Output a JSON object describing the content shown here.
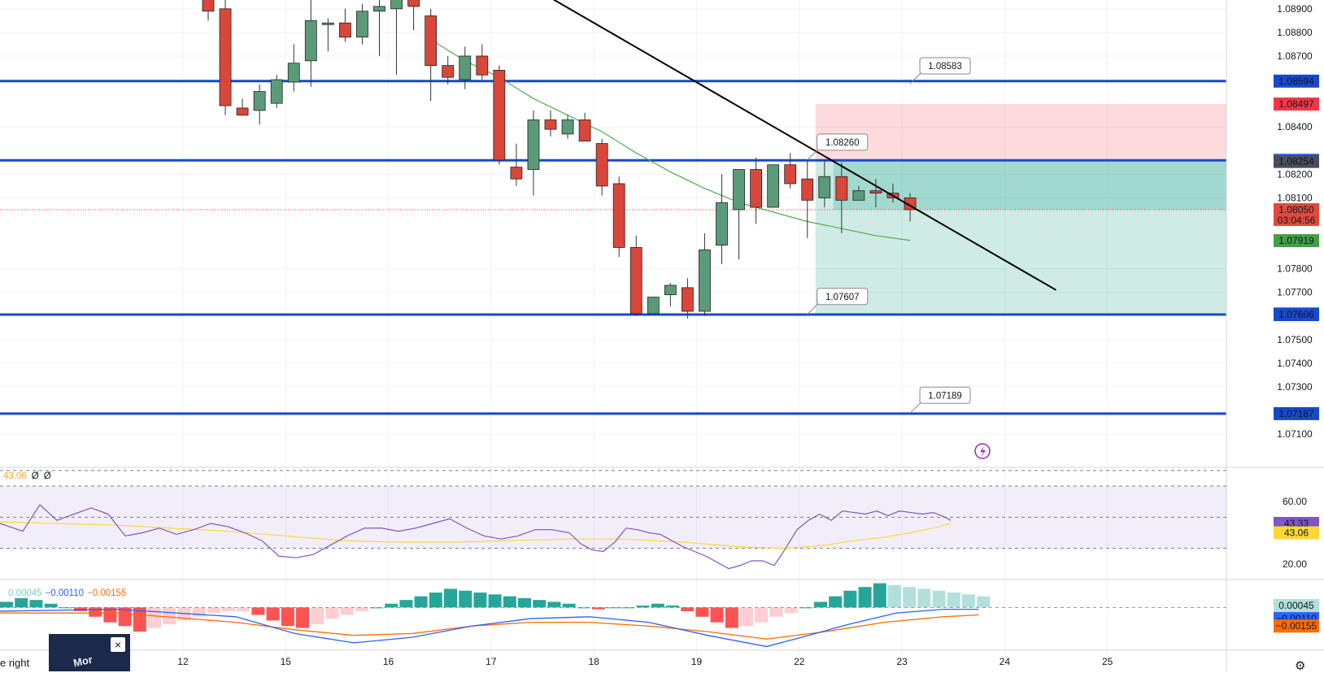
{
  "chart_data": {
    "type": "candlestick",
    "price_range": [
      1.0705,
      1.0895
    ],
    "price_ticks": [
      "1.08900",
      "1.08800",
      "1.08700",
      "1.08400",
      "1.08200",
      "1.08100",
      "1.07800",
      "1.07700",
      "1.07500",
      "1.07400",
      "1.07300",
      "1.07100"
    ],
    "x_ticks": [
      {
        "label": "12",
        "x": 8
      },
      {
        "label": "15",
        "x": 14
      },
      {
        "label": "16",
        "x": 20
      },
      {
        "label": "17",
        "x": 26
      },
      {
        "label": "18",
        "x": 32
      },
      {
        "label": "19",
        "x": 38
      },
      {
        "label": "22",
        "x": 44
      },
      {
        "label": "23",
        "x": 50
      },
      {
        "label": "24",
        "x": 56
      },
      {
        "label": "25",
        "x": 62
      }
    ],
    "candles": [
      {
        "x": 9,
        "o": 1.0895,
        "h": 1.09,
        "l": 1.0885,
        "c": 1.0889
      },
      {
        "x": 10,
        "o": 1.089,
        "h": 1.0895,
        "l": 1.0845,
        "c": 1.0849
      },
      {
        "x": 11,
        "o": 1.0848,
        "h": 1.0852,
        "l": 1.0845,
        "c": 1.0845
      },
      {
        "x": 12,
        "o": 1.0847,
        "h": 1.0858,
        "l": 1.0841,
        "c": 1.0855
      },
      {
        "x": 13,
        "o": 1.085,
        "h": 1.0862,
        "l": 1.0848,
        "c": 1.086
      },
      {
        "x": 14,
        "o": 1.0859,
        "h": 1.0875,
        "l": 1.0855,
        "c": 1.0867
      },
      {
        "x": 15,
        "o": 1.0868,
        "h": 1.0895,
        "l": 1.0857,
        "c": 1.0885
      },
      {
        "x": 16,
        "o": 1.0884,
        "h": 1.0886,
        "l": 1.0872,
        "c": 1.0884
      },
      {
        "x": 17,
        "o": 1.0884,
        "h": 1.089,
        "l": 1.0876,
        "c": 1.0878
      },
      {
        "x": 18,
        "o": 1.0878,
        "h": 1.0892,
        "l": 1.0875,
        "c": 1.0889
      },
      {
        "x": 19,
        "o": 1.0889,
        "h": 1.0895,
        "l": 1.087,
        "c": 1.0891
      },
      {
        "x": 20,
        "o": 1.089,
        "h": 1.09,
        "l": 1.0862,
        "c": 1.09
      },
      {
        "x": 21,
        "o": 1.0901,
        "h": 1.0905,
        "l": 1.0881,
        "c": 1.0891
      },
      {
        "x": 22,
        "o": 1.0887,
        "h": 1.089,
        "l": 1.0851,
        "c": 1.0866
      },
      {
        "x": 23,
        "o": 1.0866,
        "h": 1.087,
        "l": 1.0858,
        "c": 1.0861
      },
      {
        "x": 24,
        "o": 1.086,
        "h": 1.0874,
        "l": 1.0856,
        "c": 1.087
      },
      {
        "x": 25,
        "o": 1.087,
        "h": 1.0875,
        "l": 1.086,
        "c": 1.0862
      },
      {
        "x": 26,
        "o": 1.0864,
        "h": 1.0866,
        "l": 1.0824,
        "c": 1.0826
      },
      {
        "x": 27,
        "o": 1.0823,
        "h": 1.0833,
        "l": 1.0815,
        "c": 1.0818
      },
      {
        "x": 28,
        "o": 1.0822,
        "h": 1.0847,
        "l": 1.0811,
        "c": 1.0843
      },
      {
        "x": 29,
        "o": 1.0843,
        "h": 1.0847,
        "l": 1.0836,
        "c": 1.0839
      },
      {
        "x": 30,
        "o": 1.0837,
        "h": 1.0845,
        "l": 1.0835,
        "c": 1.0843
      },
      {
        "x": 31,
        "o": 1.0843,
        "h": 1.0846,
        "l": 1.0834,
        "c": 1.0834
      },
      {
        "x": 32,
        "o": 1.0833,
        "h": 1.0835,
        "l": 1.0811,
        "c": 1.0815
      },
      {
        "x": 33,
        "o": 1.0816,
        "h": 1.0819,
        "l": 1.0785,
        "c": 1.0789
      },
      {
        "x": 34,
        "o": 1.0789,
        "h": 1.0794,
        "l": 1.076,
        "c": 1.0761
      },
      {
        "x": 35,
        "o": 1.0761,
        "h": 1.0768,
        "l": 1.0761,
        "c": 1.0768
      },
      {
        "x": 36,
        "o": 1.0769,
        "h": 1.0774,
        "l": 1.0764,
        "c": 1.0773
      },
      {
        "x": 37,
        "o": 1.0772,
        "h": 1.0776,
        "l": 1.0759,
        "c": 1.0762
      },
      {
        "x": 38,
        "o": 1.0762,
        "h": 1.0795,
        "l": 1.076,
        "c": 1.0788
      },
      {
        "x": 39,
        "o": 1.079,
        "h": 1.082,
        "l": 1.0782,
        "c": 1.0808
      },
      {
        "x": 40,
        "o": 1.0805,
        "h": 1.0822,
        "l": 1.0784,
        "c": 1.0822
      },
      {
        "x": 41,
        "o": 1.0822,
        "h": 1.0827,
        "l": 1.0799,
        "c": 1.0806
      },
      {
        "x": 42,
        "o": 1.0806,
        "h": 1.0824,
        "l": 1.0806,
        "c": 1.0824
      },
      {
        "x": 43,
        "o": 1.0824,
        "h": 1.0829,
        "l": 1.0814,
        "c": 1.0816
      },
      {
        "x": 44,
        "o": 1.0818,
        "h": 1.0826,
        "l": 1.0793,
        "c": 1.0809
      },
      {
        "x": 45,
        "o": 1.081,
        "h": 1.0826,
        "l": 1.0806,
        "c": 1.0819
      },
      {
        "x": 46,
        "o": 1.0819,
        "h": 1.0825,
        "l": 1.0795,
        "c": 1.0809
      },
      {
        "x": 47,
        "o": 1.0809,
        "h": 1.0815,
        "l": 1.0809,
        "c": 1.0813
      },
      {
        "x": 48,
        "o": 1.0813,
        "h": 1.0818,
        "l": 1.0806,
        "c": 1.0812
      },
      {
        "x": 49,
        "o": 1.0812,
        "h": 1.0816,
        "l": 1.0808,
        "c": 1.081
      },
      {
        "x": 50,
        "o": 1.081,
        "h": 1.0812,
        "l": 1.08,
        "c": 1.0805
      }
    ],
    "sma": {
      "color": "#4caf50",
      "points": [
        [
          22,
          1.0877
        ],
        [
          24,
          1.0868
        ],
        [
          26,
          1.0861
        ],
        [
          28,
          1.0852
        ],
        [
          30,
          1.0845
        ],
        [
          32,
          1.0838
        ],
        [
          34,
          1.0829
        ],
        [
          36,
          1.0821
        ],
        [
          38,
          1.0814
        ],
        [
          40,
          1.0808
        ],
        [
          42,
          1.0804
        ],
        [
          44,
          1.08
        ],
        [
          46,
          1.0797
        ],
        [
          48,
          1.0794
        ],
        [
          50,
          1.0792
        ]
      ]
    },
    "trendline": {
      "from": [
        27,
        1.0905
      ],
      "to": [
        59,
        1.0771
      ],
      "color": "#000000"
    },
    "horizontal_levels": [
      {
        "price": 1.08594,
        "label": "1.08594"
      },
      {
        "price": 1.08259,
        "label": "1.08259"
      },
      {
        "price": 1.07606,
        "label": "1.07606"
      },
      {
        "price": 1.07187,
        "label": "1.07187"
      }
    ],
    "position": {
      "x_start": 44,
      "entry": 1.08254,
      "stop": 1.08497,
      "target": 1.07609
    },
    "callouts": [
      {
        "label": "1.08583",
        "x": 50,
        "price": 1.08583
      },
      {
        "label": "1.08260",
        "x": 44,
        "price": 1.0826
      },
      {
        "label": "1.07607",
        "x": 44,
        "price": 1.07607
      },
      {
        "label": "1.07189",
        "x": 50,
        "price": 1.07189
      }
    ],
    "axis_badges": [
      {
        "price": 1.08594,
        "label": "1.08594",
        "bg": "#1848cc",
        "fg": "#ffffff"
      },
      {
        "price": 1.08497,
        "label": "1.08497",
        "bg": "#f23645",
        "fg": "#ffffff"
      },
      {
        "price": 1.08259,
        "label": "1.08259",
        "bg": "#2962ff",
        "fg": "#ffffff"
      },
      {
        "price": 1.08254,
        "label": "1.08254",
        "bg": "#4a4e58",
        "fg": "#ffffff"
      },
      {
        "price": 1.0805,
        "label": "1.08050",
        "bg": "#e04a3c",
        "fg": "#ffffff",
        "sub": "03:04:56"
      },
      {
        "price": 1.07919,
        "label": "1.07919",
        "bg": "#43a047",
        "fg": "#ffffff"
      },
      {
        "price": 1.07609,
        "label": "1.07609",
        "bg": "#089981",
        "fg": "#ffffff"
      },
      {
        "price": 1.07606,
        "label": "1.07606",
        "bg": "#1848cc",
        "fg": "#ffffff"
      },
      {
        "price": 1.07187,
        "label": "1.07187",
        "bg": "#1848cc",
        "fg": "#ffffff"
      }
    ],
    "current_price": 1.0805,
    "rsi": {
      "legend": [
        "43.06",
        "Ø",
        "Ø"
      ],
      "range": [
        10,
        82
      ],
      "ticks": [
        "60.00",
        "20.00"
      ],
      "band": [
        30,
        70
      ],
      "rsi_color": "#7e57c2",
      "ma_color": "#fdd835",
      "rsi_values": [
        [
          0,
          46
        ],
        [
          4,
          41
        ],
        [
          7,
          58
        ],
        [
          10,
          48
        ],
        [
          13,
          52
        ],
        [
          16,
          56
        ],
        [
          19,
          52
        ],
        [
          22,
          38
        ],
        [
          25,
          40
        ],
        [
          28,
          43
        ],
        [
          31,
          39
        ],
        [
          34,
          42
        ],
        [
          37,
          46
        ],
        [
          40,
          44
        ],
        [
          43,
          40
        ],
        [
          46,
          35
        ],
        [
          49,
          25
        ],
        [
          52,
          24
        ],
        [
          55,
          26
        ],
        [
          58,
          32
        ],
        [
          61,
          38
        ],
        [
          64,
          43
        ],
        [
          67,
          43
        ],
        [
          70,
          41
        ],
        [
          73,
          43
        ],
        [
          76,
          46
        ],
        [
          79,
          49
        ],
        [
          82,
          43
        ],
        [
          85,
          38
        ],
        [
          88,
          36
        ],
        [
          91,
          38
        ],
        [
          94,
          42
        ],
        [
          97,
          42
        ],
        [
          100,
          40
        ],
        [
          102,
          33
        ],
        [
          104,
          29
        ],
        [
          106,
          28
        ],
        [
          108,
          34
        ],
        [
          110,
          43
        ],
        [
          112,
          42
        ],
        [
          114,
          40
        ],
        [
          116,
          39
        ],
        [
          118,
          35
        ],
        [
          120,
          31
        ],
        [
          122,
          28
        ],
        [
          124,
          25
        ],
        [
          126,
          21
        ],
        [
          128,
          17
        ],
        [
          130,
          19
        ],
        [
          132,
          22
        ],
        [
          134,
          22
        ],
        [
          136,
          19
        ],
        [
          138,
          30
        ],
        [
          140,
          42
        ],
        [
          142,
          48
        ],
        [
          144,
          52
        ],
        [
          146,
          48
        ],
        [
          148,
          54
        ],
        [
          150,
          53
        ],
        [
          152,
          52
        ],
        [
          154,
          54
        ],
        [
          156,
          51
        ],
        [
          158,
          54
        ],
        [
          160,
          53
        ],
        [
          162,
          52
        ],
        [
          164,
          53
        ],
        [
          166,
          50
        ],
        [
          167,
          48
        ]
      ],
      "ma_values": [
        [
          0,
          47
        ],
        [
          10,
          46
        ],
        [
          20,
          45
        ],
        [
          30,
          43
        ],
        [
          40,
          41
        ],
        [
          50,
          38
        ],
        [
          60,
          35
        ],
        [
          70,
          34
        ],
        [
          80,
          34
        ],
        [
          90,
          35
        ],
        [
          100,
          36
        ],
        [
          110,
          36
        ],
        [
          120,
          34
        ],
        [
          130,
          31
        ],
        [
          138,
          30
        ],
        [
          145,
          32
        ],
        [
          150,
          35
        ],
        [
          155,
          37
        ],
        [
          160,
          40
        ],
        [
          165,
          44
        ],
        [
          167,
          46
        ]
      ],
      "badges": [
        {
          "value": "43.33",
          "bg": "#7e57c2",
          "fg": "#ffffff",
          "v": 46
        },
        {
          "value": "43.06",
          "bg": "#fdd835",
          "fg": "#131722",
          "v": 40
        }
      ]
    },
    "macd": {
      "legend": [
        {
          "text": "0.00045",
          "color": "#80cbc4"
        },
        {
          "text": "−0.00110",
          "color": "#2962ff"
        },
        {
          "text": "−0.00155",
          "color": "#ff6d00"
        }
      ],
      "hist": [
        0.3,
        0.5,
        0.4,
        0.2,
        0.0,
        -0.2,
        -0.5,
        -0.8,
        -1.0,
        -1.3,
        -1.1,
        -0.9,
        -0.7,
        -0.5,
        -0.3,
        -0.2,
        -0.2,
        -0.4,
        -0.7,
        -1.0,
        -1.1,
        -0.9,
        -0.6,
        -0.4,
        -0.2,
        0.0,
        0.2,
        0.4,
        0.6,
        0.8,
        1.0,
        0.9,
        0.8,
        0.7,
        0.6,
        0.5,
        0.4,
        0.3,
        0.2,
        0.0,
        -0.1,
        0.0,
        0.0,
        0.1,
        0.2,
        0.1,
        -0.2,
        -0.5,
        -0.8,
        -1.1,
        -1.0,
        -0.8,
        -0.5,
        -0.3,
        0.0,
        0.3,
        0.6,
        0.9,
        1.1,
        1.3,
        1.2,
        1.1,
        1.0,
        0.9,
        0.8,
        0.7,
        0.6
      ],
      "macd_line": [
        [
          0,
          -0.2
        ],
        [
          10,
          -0.1
        ],
        [
          20,
          -0.5
        ],
        [
          25,
          -1.4
        ],
        [
          30,
          -1.9
        ],
        [
          35,
          -1.6
        ],
        [
          40,
          -1.0
        ],
        [
          45,
          -0.6
        ],
        [
          50,
          -0.5
        ],
        [
          55,
          -0.8
        ],
        [
          60,
          -1.5
        ],
        [
          65,
          -2.1
        ],
        [
          68,
          -1.6
        ],
        [
          72,
          -0.9
        ],
        [
          76,
          -0.3
        ],
        [
          80,
          -0.1
        ],
        [
          83,
          -0.1
        ]
      ],
      "signal_line": [
        [
          0,
          -0.3
        ],
        [
          10,
          -0.3
        ],
        [
          20,
          -0.8
        ],
        [
          25,
          -1.2
        ],
        [
          30,
          -1.5
        ],
        [
          35,
          -1.4
        ],
        [
          40,
          -1.0
        ],
        [
          45,
          -0.8
        ],
        [
          50,
          -0.8
        ],
        [
          55,
          -1.0
        ],
        [
          60,
          -1.3
        ],
        [
          65,
          -1.7
        ],
        [
          70,
          -1.3
        ],
        [
          75,
          -0.8
        ],
        [
          80,
          -0.5
        ],
        [
          83,
          -0.4
        ]
      ],
      "range": [
        -2.3,
        1.5
      ],
      "badges": [
        {
          "value": "0.00045",
          "bg": "#b2dfdb",
          "fg": "#131722",
          "v": 0.1
        },
        {
          "value": "−0.00110",
          "bg": "#2962ff",
          "fg": "#ffffff",
          "v": -0.6
        },
        {
          "value": "−0.00155",
          "bg": "#ff6d00",
          "fg": "#ffffff",
          "v": -1.0
        }
      ]
    }
  },
  "thumbnail": {
    "close": "×",
    "text": "Mor"
  },
  "corner_text": "e right",
  "settings_icon": "gear-icon"
}
